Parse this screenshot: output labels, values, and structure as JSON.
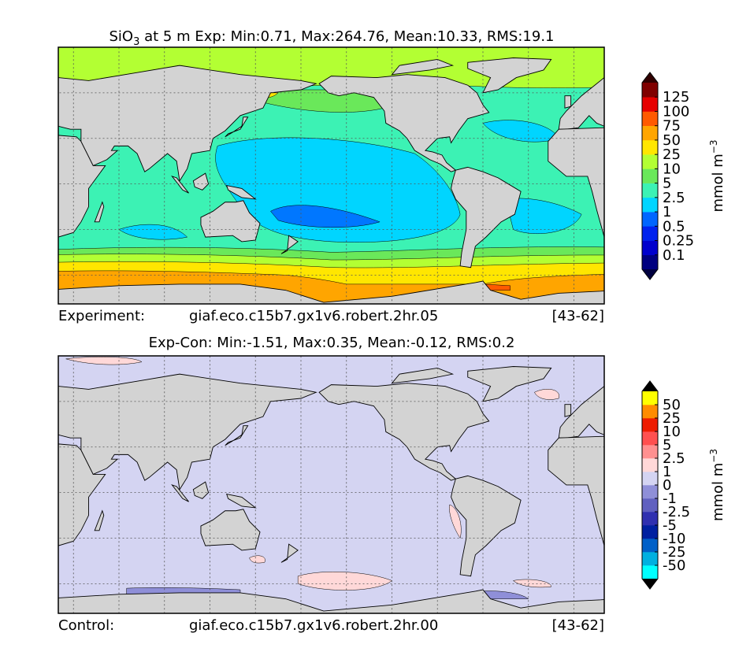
{
  "panels": [
    {
      "title": "SiO",
      "title_sub": "3",
      "title_rest": " at 5 m Exp: Min:0.71, Max:264.76, Mean:10.33, RMS:19.1",
      "footer": {
        "label": "Experiment:",
        "case": "giaf.eco.c15b7.gx1v6.robert.2hr.05",
        "years": "[43-62]"
      },
      "colorbar": {
        "labels": [
          "0.1",
          "0.25",
          "0.5",
          "1",
          "2.5",
          "5",
          "10",
          "25",
          "50",
          "75",
          "100",
          "125"
        ],
        "colors": [
          "#000080",
          "#0000cd",
          "#0022ee",
          "#0066ff",
          "#00d5ff",
          "#3cf2b4",
          "#6ae85a",
          "#b3ff33",
          "#ffe600",
          "#ffa500",
          "#ff5a00",
          "#e60000",
          "#800000"
        ],
        "extend_colors": [
          "#000040",
          "#300000"
        ],
        "unit": "mmol m",
        "unit_exp": "−3"
      }
    },
    {
      "title": "Exp-Con: Min:-1.51, Max:0.35, Mean:-0.12, RMS:0.2",
      "footer": {
        "label": "Control:",
        "case": "giaf.eco.c15b7.gx1v6.robert.2hr.00",
        "years": "[43-62]"
      },
      "colorbar": {
        "labels": [
          "-50",
          "-25",
          "-10",
          "-5",
          "-2.5",
          "-1",
          "0",
          "1",
          "2.5",
          "5",
          "10",
          "25",
          "50"
        ],
        "colors": [
          "#00ffff",
          "#00b0e0",
          "#0060c8",
          "#0020a0",
          "#3030b0",
          "#6060c0",
          "#8f8fd8",
          "#d4d4f2",
          "#ffd8d8",
          "#ff9090",
          "#ff5050",
          "#ee1c00",
          "#ff8c00",
          "#ffff00"
        ],
        "extend_colors": [
          "#000000",
          "#000000"
        ],
        "unit": "mmol m",
        "unit_exp": "−3"
      }
    }
  ]
}
